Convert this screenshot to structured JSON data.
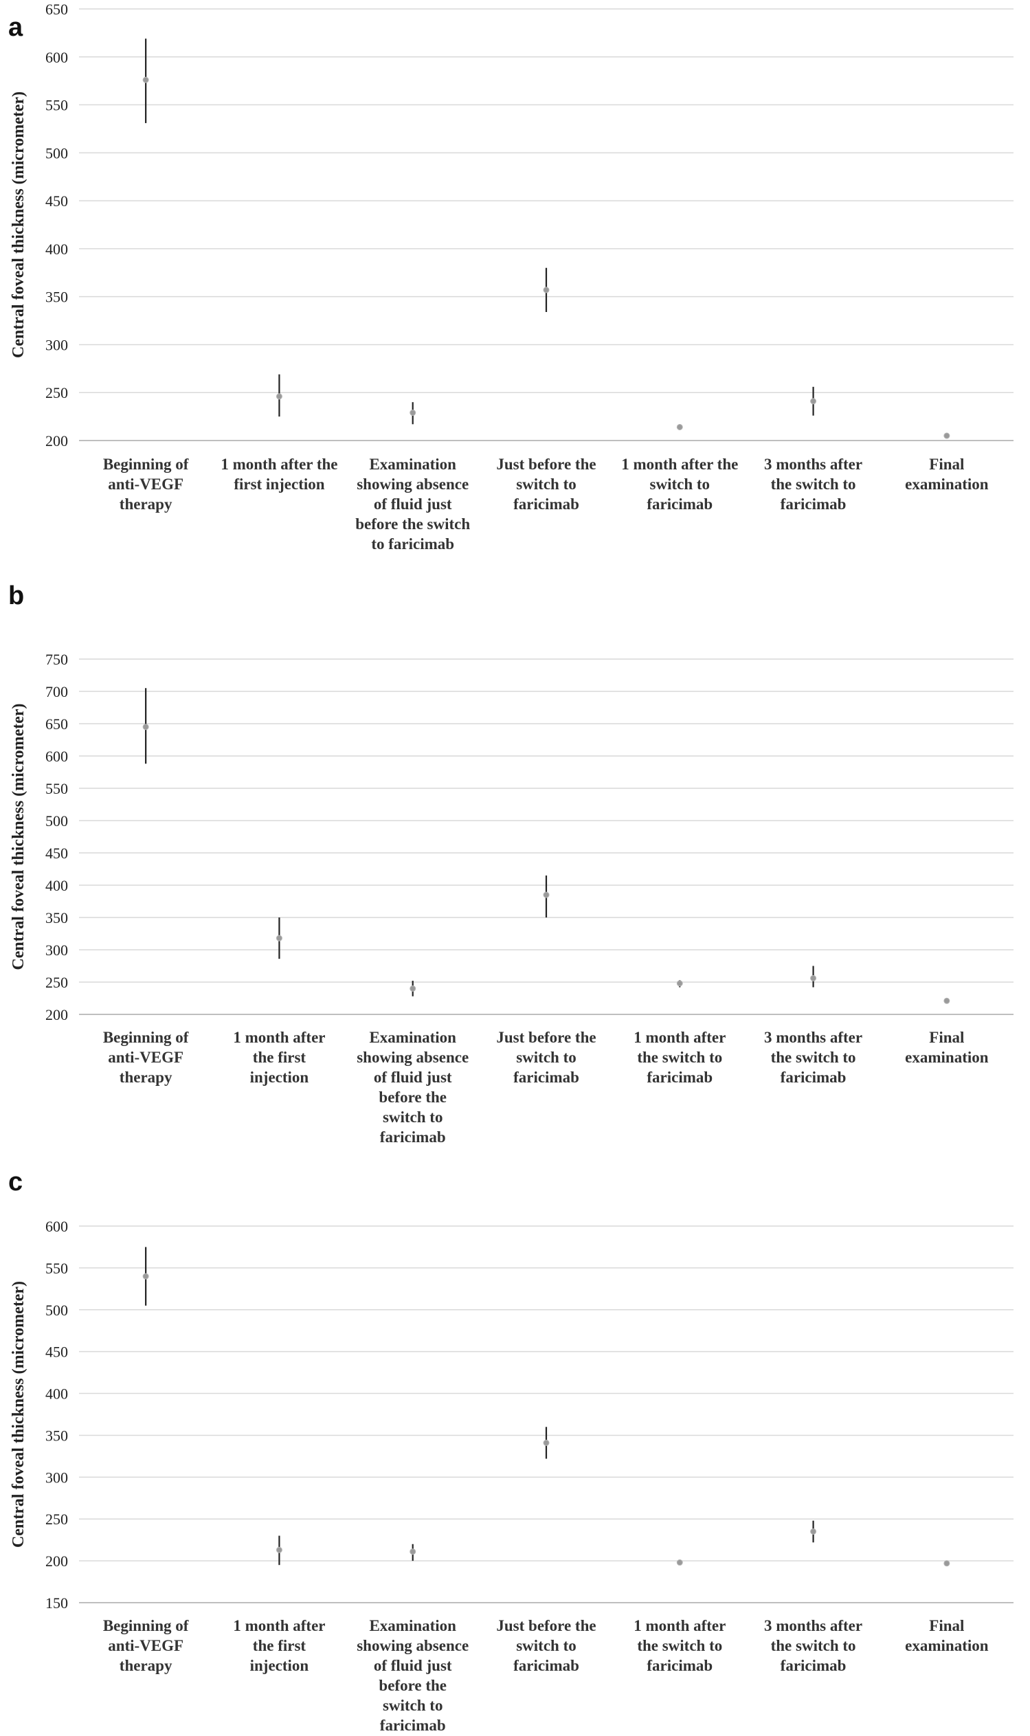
{
  "chart_data": [
    {
      "panel": "a",
      "type": "scatter",
      "ylabel": "Central foveal thickness (micrometer)",
      "ylim": [
        200,
        650
      ],
      "yticks": [
        200,
        250,
        300,
        350,
        400,
        450,
        500,
        550,
        600,
        650
      ],
      "grid": true,
      "categories": [
        [
          "Beginning of",
          "anti-VEGF",
          "therapy"
        ],
        [
          "1 month after the",
          "first injection"
        ],
        [
          "Examination",
          "showing absence",
          "of fluid just",
          "before the switch",
          "to faricimab"
        ],
        [
          "Just before the",
          "switch to",
          "faricimab"
        ],
        [
          "1 month after the",
          "switch to",
          "faricimab"
        ],
        [
          "3 months after",
          "the switch to",
          "faricimab"
        ],
        [
          "Final",
          "examination"
        ]
      ],
      "mean": [
        576,
        246,
        229,
        357,
        214,
        241,
        205
      ],
      "err_low": [
        531,
        225,
        217,
        334,
        211,
        226,
        203
      ],
      "err_high": [
        619,
        269,
        240,
        380,
        217,
        256,
        207
      ]
    },
    {
      "panel": "b",
      "type": "scatter",
      "ylabel": "Central foveal thickness (micrometer)",
      "ylim": [
        200,
        750
      ],
      "yticks": [
        200,
        250,
        300,
        350,
        400,
        450,
        500,
        550,
        600,
        650,
        700,
        750
      ],
      "grid": true,
      "categories": [
        [
          "Beginning of",
          "anti-VEGF",
          "therapy"
        ],
        [
          "1 month after",
          "the first",
          "injection"
        ],
        [
          "Examination",
          "showing absence",
          "of fluid just",
          "before the",
          "switch to",
          "faricimab"
        ],
        [
          "Just before the",
          "switch to",
          "faricimab"
        ],
        [
          "1 month after",
          "the switch to",
          "faricimab"
        ],
        [
          "3 months after",
          "the switch to",
          "faricimab"
        ],
        [
          "Final",
          "examination"
        ]
      ],
      "mean": [
        645,
        318,
        240,
        385,
        248,
        256,
        221
      ],
      "err_low": [
        588,
        286,
        228,
        350,
        242,
        242,
        218
      ],
      "err_high": [
        705,
        350,
        252,
        415,
        253,
        275,
        224
      ]
    },
    {
      "panel": "c",
      "type": "scatter",
      "ylabel": "Central foveal thickness (micrometer)",
      "ylim": [
        150,
        600
      ],
      "yticks": [
        150,
        200,
        250,
        300,
        350,
        400,
        450,
        500,
        550,
        600
      ],
      "grid": true,
      "categories": [
        [
          "Beginning of",
          "anti-VEGF",
          "therapy"
        ],
        [
          "1 month after",
          "the first",
          "injection"
        ],
        [
          "Examination",
          "showing absence",
          "of fluid just",
          "before the",
          "switch to",
          "faricimab"
        ],
        [
          "Just before the",
          "switch to",
          "faricimab"
        ],
        [
          "1 month after",
          "the switch to",
          "faricimab"
        ],
        [
          "3 months after",
          "the switch to",
          "faricimab"
        ],
        [
          "Final",
          "examination"
        ]
      ],
      "mean": [
        540,
        213,
        211,
        341,
        198,
        235,
        197
      ],
      "err_low": [
        505,
        195,
        200,
        322,
        196,
        222,
        195
      ],
      "err_high": [
        575,
        230,
        220,
        360,
        200,
        248,
        199
      ]
    }
  ],
  "colors": {
    "grid": "#d9d9d9",
    "axis": "#bfbfbf",
    "errbar": "#222222",
    "marker": "#9a9a9a"
  }
}
